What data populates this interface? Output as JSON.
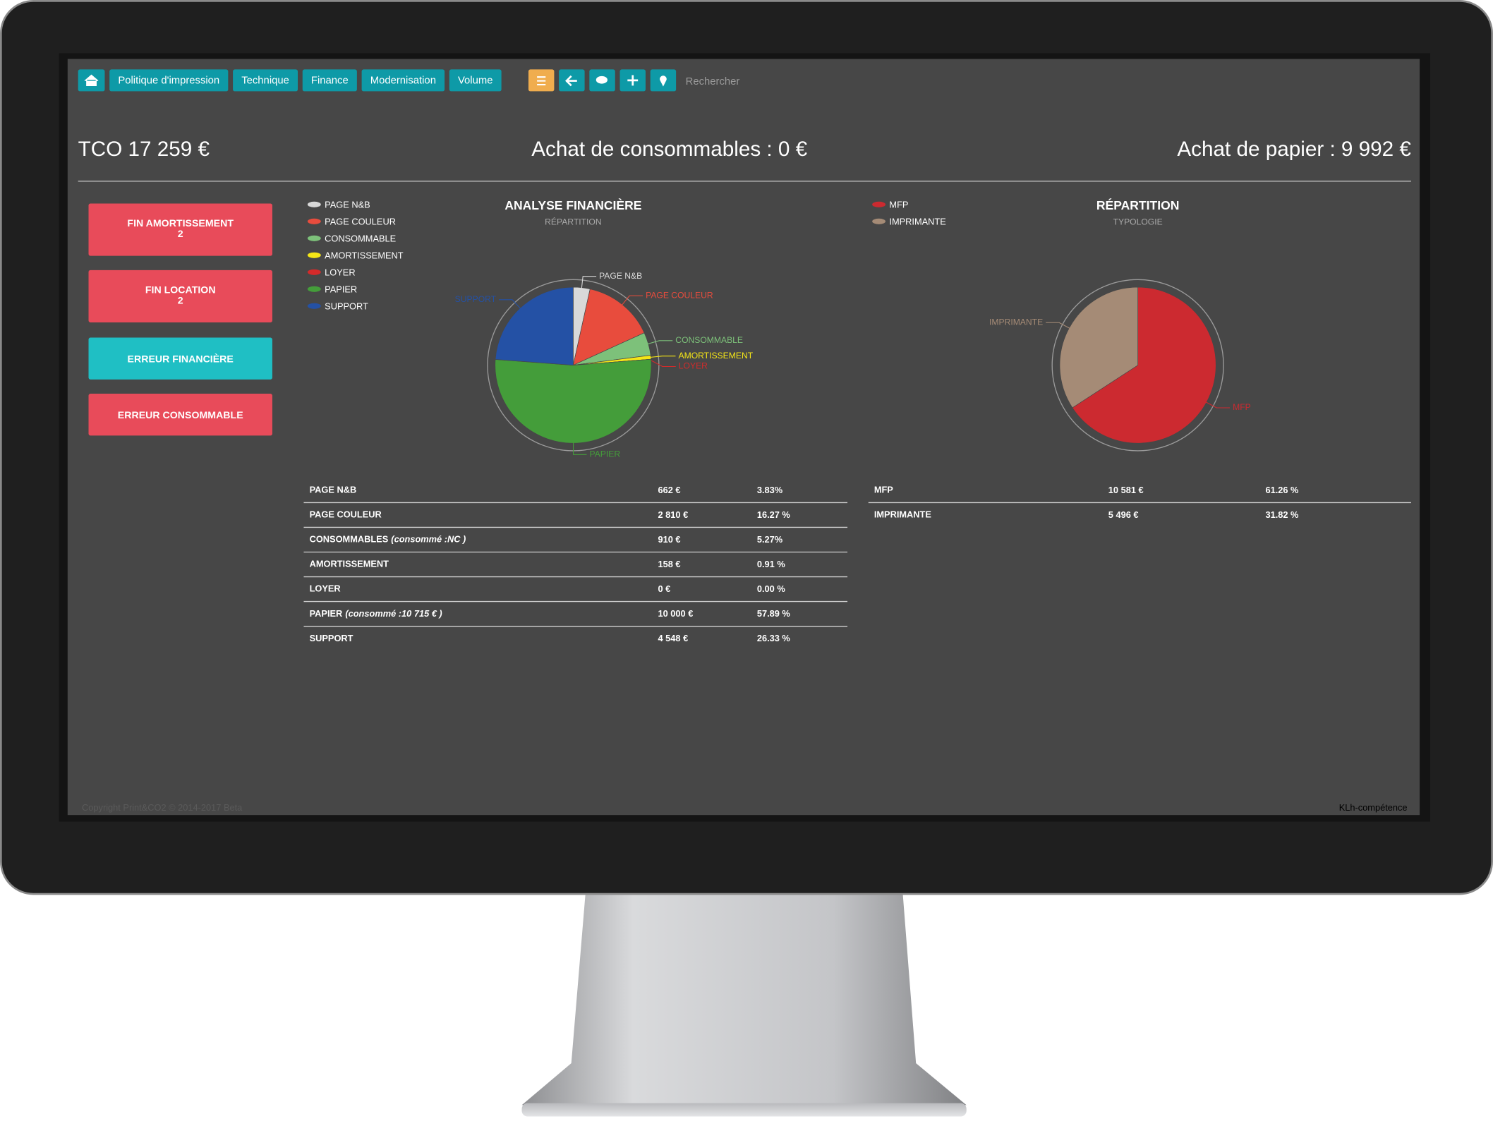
{
  "nav": {
    "items": [
      "Politique d'impression",
      "Technique",
      "Finance",
      "Modernisation",
      "Volume"
    ],
    "search_placeholder": "Rechercher"
  },
  "header": {
    "tco": "TCO 17 259 €",
    "consommables": "Achat de consommables : 0 €",
    "papier": "Achat de papier : 9 992 €"
  },
  "alerts": [
    {
      "label": "FIN AMORTISSEMENT",
      "count": 2,
      "color": "#e84b5a"
    },
    {
      "label": "FIN LOCATION",
      "count": 2,
      "color": "#e84b5a"
    },
    {
      "label": "ERREUR FINANCIÈRE",
      "color": "#1fbfc4"
    },
    {
      "label": "ERREUR CONSOMMABLE",
      "color": "#e84b5a"
    }
  ],
  "chart_data": [
    {
      "type": "pie",
      "title": "ANALYSE FINANCIÈRE",
      "subtitle": "RÉPARTITION",
      "categories": [
        "PAGE N&B",
        "PAGE COULEUR",
        "CONSOMMABLE",
        "AMORTISSEMENT",
        "LOYER",
        "PAPIER",
        "SUPPORT"
      ],
      "values": [
        3.83,
        16.27,
        5.27,
        0.91,
        0,
        57.89,
        26.33
      ],
      "colors": [
        "#d9d9d9",
        "#e84c3d",
        "#7dc17a",
        "#f5e617",
        "#d42a2a",
        "#449d3a",
        "#2451a5"
      ]
    },
    {
      "type": "pie",
      "title": "RÉPARTITION",
      "subtitle": "TYPOLOGIE",
      "categories": [
        "MFP",
        "IMPRIMANTE"
      ],
      "values": [
        61.26,
        31.82
      ],
      "colors": [
        "#cc2a30",
        "#a58b76"
      ]
    }
  ],
  "tables": [
    {
      "rows": [
        {
          "label": "PAGE N&B",
          "amount": "662 €",
          "share": "3.83%"
        },
        {
          "label": "PAGE COULEUR",
          "amount": "2 810 €",
          "share": "16.27 %"
        },
        {
          "label": "CONSOMMABLES",
          "note": "(consommé :NC )",
          "amount": "910 €",
          "share": "5.27%"
        },
        {
          "label": "AMORTISSEMENT",
          "amount": "158 €",
          "share": "0.91 %"
        },
        {
          "label": "LOYER",
          "amount": "0 €",
          "share": "0.00 %"
        },
        {
          "label": "PAPIER",
          "note": "(consommé :10 715 € )",
          "amount": "10 000 €",
          "share": "57.89 %"
        },
        {
          "label": "SUPPORT",
          "amount": "4 548 €",
          "share": "26.33 %"
        }
      ]
    },
    {
      "rows": [
        {
          "label": "MFP",
          "amount": "10 581 €",
          "share": "61.26 %"
        },
        {
          "label": "IMPRIMANTE",
          "amount": "5 496 €",
          "share": "31.82 %"
        }
      ]
    }
  ],
  "footer": {
    "copyright": "Copyright Print&CO2 © 2014-2017 Beta",
    "credit": "KLh-compétence"
  }
}
